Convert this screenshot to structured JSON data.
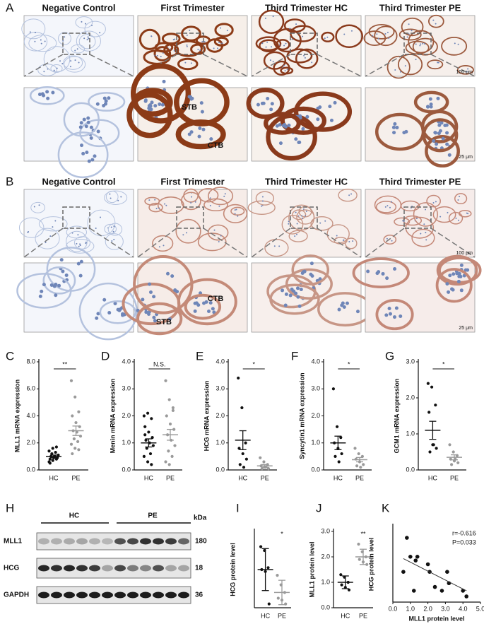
{
  "panels": {
    "A": {
      "label": "A",
      "columns": [
        "Negative Control",
        "First Trimester",
        "Third Trimester HC",
        "Third Trimester PE"
      ],
      "scale_top": "100 μm",
      "scale_bottom": "25 μm",
      "annotations": [
        "STB",
        "CTB"
      ]
    },
    "B": {
      "label": "B",
      "columns": [
        "Negative Control",
        "First Trimester",
        "Third Trimester HC",
        "Third Trimester PE"
      ],
      "scale_top": "100 μm",
      "scale_bottom": "25 μm",
      "annotations": [
        "CTB",
        "STB"
      ]
    },
    "H": {
      "label": "H",
      "groups": [
        "HC",
        "PE"
      ],
      "unit": "kDa",
      "rows": [
        {
          "name": "MLL1",
          "size": 180
        },
        {
          "name": "HCG",
          "size": 18
        },
        {
          "name": "GAPDH",
          "size": 36
        }
      ]
    }
  },
  "chart_data": [
    {
      "type": "dotplot",
      "label": "C",
      "y_label": "MLL1 mRNA expression",
      "significance": "**",
      "categories": [
        "HC",
        "PE"
      ],
      "colors": [
        "#111111",
        "#9a9a9a"
      ],
      "ylim": [
        0,
        8
      ],
      "yticks": [
        {
          "value": 0,
          "label": "0.0"
        },
        {
          "value": 2,
          "label": "2.0"
        },
        {
          "value": 4,
          "label": "4.0"
        },
        {
          "value": 6,
          "label": "6.0"
        },
        {
          "value": 8,
          "label": "8.0"
        }
      ],
      "groups": [
        {
          "values": [
            0.6,
            0.7,
            0.8,
            0.8,
            0.9,
            0.9,
            1.0,
            1.0,
            1.1,
            1.2,
            1.3,
            1.4,
            1.6,
            1.7,
            0.5
          ],
          "mean": 1.0,
          "error": 0.1
        },
        {
          "values": [
            6.6,
            5.4,
            4.3,
            4.0,
            3.5,
            3.2,
            2.9,
            2.8,
            2.5,
            2.3,
            2.1,
            1.9,
            1.6,
            1.5,
            1.2
          ],
          "mean": 2.9,
          "error": 0.35
        }
      ]
    },
    {
      "type": "dotplot",
      "label": "D",
      "y_label": "Menin mRNA expression",
      "significance": "N.S.",
      "categories": [
        "HC",
        "PE"
      ],
      "colors": [
        "#111111",
        "#9a9a9a"
      ],
      "ylim": [
        0,
        4
      ],
      "yticks": [
        {
          "value": 0,
          "label": "0.0"
        },
        {
          "value": 1,
          "label": "1.0"
        },
        {
          "value": 2,
          "label": "2.0"
        },
        {
          "value": 3,
          "label": "3.0"
        },
        {
          "value": 4,
          "label": "4.0"
        }
      ],
      "groups": [
        {
          "values": [
            2.0,
            2.1,
            1.9,
            1.6,
            1.4,
            1.2,
            1.1,
            1.0,
            0.9,
            0.8,
            0.6,
            0.5,
            0.3,
            0.2,
            1.3
          ],
          "mean": 1.0,
          "error": 0.15
        },
        {
          "values": [
            3.3,
            2.6,
            2.2,
            2.0,
            1.7,
            1.5,
            1.3,
            1.1,
            0.9,
            0.7,
            0.5,
            0.3,
            0.2,
            2.3
          ],
          "mean": 1.3,
          "error": 0.2
        }
      ]
    },
    {
      "type": "dotplot",
      "label": "E",
      "y_label": "HCG mRNA expression",
      "significance": "*",
      "categories": [
        "HC",
        "PE"
      ],
      "colors": [
        "#111111",
        "#9a9a9a"
      ],
      "ylim": [
        0,
        4
      ],
      "yticks": [
        {
          "value": 0,
          "label": "0.0"
        },
        {
          "value": 1,
          "label": "1.0"
        },
        {
          "value": 2,
          "label": "2.0"
        },
        {
          "value": 3,
          "label": "3.0"
        },
        {
          "value": 4,
          "label": "4.0"
        }
      ],
      "groups": [
        {
          "values": [
            3.4,
            2.3,
            1.0,
            0.8,
            0.6,
            0.4,
            0.2,
            0.1
          ],
          "mean": 1.1,
          "error": 0.35
        },
        {
          "values": [
            0.45,
            0.3,
            0.2,
            0.15,
            0.1,
            0.05,
            0.05,
            0.1
          ],
          "mean": 0.15,
          "error": 0.05
        }
      ]
    },
    {
      "type": "dotplot",
      "label": "F",
      "y_label": "Syncytin1 mRNA expression",
      "significance": "*",
      "categories": [
        "HC",
        "PE"
      ],
      "colors": [
        "#111111",
        "#9a9a9a"
      ],
      "ylim": [
        0,
        4
      ],
      "yticks": [
        {
          "value": 0,
          "label": "0.0"
        },
        {
          "value": 1,
          "label": "1.0"
        },
        {
          "value": 2,
          "label": "2.0"
        },
        {
          "value": 3,
          "label": "3.0"
        },
        {
          "value": 4,
          "label": "4.0"
        }
      ],
      "groups": [
        {
          "values": [
            3.0,
            1.6,
            1.2,
            1.0,
            0.8,
            0.6,
            0.5,
            0.3
          ],
          "mean": 1.0,
          "error": 0.25
        },
        {
          "values": [
            0.8,
            0.6,
            0.5,
            0.4,
            0.3,
            0.2,
            0.15,
            0.1
          ],
          "mean": 0.38,
          "error": 0.08
        }
      ]
    },
    {
      "type": "dotplot",
      "label": "G",
      "y_label": "GCM1 mRNA expression",
      "significance": "*",
      "categories": [
        "HC",
        "PE"
      ],
      "colors": [
        "#111111",
        "#9a9a9a"
      ],
      "ylim": [
        0,
        3
      ],
      "yticks": [
        {
          "value": 0,
          "label": "0.0"
        },
        {
          "value": 1,
          "label": "1.0"
        },
        {
          "value": 2,
          "label": "2.0"
        },
        {
          "value": 3,
          "label": "3.0"
        }
      ],
      "groups": [
        {
          "values": [
            2.4,
            2.3,
            1.8,
            1.6,
            0.7,
            0.6,
            0.5,
            0.7
          ],
          "mean": 1.1,
          "error": 0.25
        },
        {
          "values": [
            0.7,
            0.5,
            0.4,
            0.3,
            0.25,
            0.2,
            0.15,
            0.3
          ],
          "mean": 0.35,
          "error": 0.07
        }
      ]
    },
    {
      "type": "dotplot",
      "label": "I",
      "y_label": "HCG protein level",
      "significance": "*",
      "categories": [
        "HC",
        "PE"
      ],
      "colors": [
        "#111111",
        "#9a9a9a"
      ],
      "ylim": [
        0,
        2
      ],
      "groups": [
        {
          "values": [
            1.6,
            1.5,
            1.05,
            1.0,
            0.95,
            0.1
          ],
          "mean": 1.0,
          "error": 0.55
        },
        {
          "values": [
            0.85,
            0.6,
            0.4,
            0.25,
            0.2,
            0.1
          ],
          "mean": 0.4,
          "error": 0.32
        }
      ]
    },
    {
      "type": "dotplot",
      "label": "J",
      "y_label": "MLL1 protein level",
      "significance": "**",
      "categories": [
        "HC",
        "PE"
      ],
      "colors": [
        "#111111",
        "#9a9a9a"
      ],
      "ylim": [
        0,
        3
      ],
      "yticks": [
        {
          "value": 0,
          "label": "0.0"
        },
        {
          "value": 1,
          "label": "1.0"
        },
        {
          "value": 2,
          "label": "2.0"
        },
        {
          "value": 3,
          "label": "3.0"
        }
      ],
      "groups": [
        {
          "values": [
            1.3,
            1.2,
            1.0,
            0.9,
            0.8,
            0.7
          ],
          "mean": 1.0,
          "error": 0.25
        },
        {
          "values": [
            2.5,
            2.2,
            2.0,
            1.9,
            1.8,
            1.7
          ],
          "mean": 2.0,
          "error": 0.3
        }
      ]
    },
    {
      "type": "scatter",
      "label": "K",
      "x_label": "MLL1 protein level",
      "y_label": "HCG protein level",
      "annotations": [
        "r=-0.616",
        "P=0.033"
      ],
      "color": "#111111",
      "xlim": [
        0,
        5
      ],
      "xticks": [
        {
          "value": 0,
          "label": "0.0"
        },
        {
          "value": 1,
          "label": "1.0"
        },
        {
          "value": 2,
          "label": "2.0"
        },
        {
          "value": 3,
          "label": "3.0"
        },
        {
          "value": 4,
          "label": "4.0"
        },
        {
          "value": 5,
          "label": "5.0"
        }
      ],
      "ylim": [
        0,
        2
      ],
      "x": [
        0.6,
        0.8,
        1.0,
        1.2,
        1.3,
        1.4,
        2.0,
        2.1,
        2.4,
        2.8,
        3.1,
        3.2,
        4.0,
        4.2
      ],
      "values": [
        0.8,
        1.7,
        1.2,
        0.3,
        1.1,
        1.2,
        1.0,
        0.8,
        0.4,
        0.3,
        0.8,
        0.5,
        0.3,
        0.15
      ],
      "fit": {
        "x": [
          0.6,
          4.2
        ],
        "y": [
          1.15,
          0.3
        ]
      }
    }
  ]
}
